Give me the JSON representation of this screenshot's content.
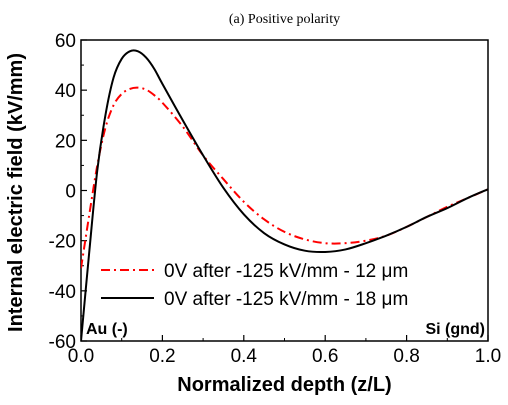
{
  "chart_data": {
    "type": "line",
    "title": "(a) Positive polarity",
    "xlabel": "Normalized depth (z/L)",
    "ylabel": "Internal electric field (kV/mm)",
    "xlim": [
      0.0,
      1.0
    ],
    "ylim": [
      -60,
      60
    ],
    "xticks": [
      "0.0",
      "0.2",
      "0.4",
      "0.6",
      "0.8",
      "1.0"
    ],
    "yticks": [
      "-60",
      "-40",
      "-20",
      "0",
      "20",
      "40",
      "60"
    ],
    "grid": false,
    "legend_position": "bottom-left",
    "annotations": {
      "left": "Au (-)",
      "right": "Si (gnd)"
    },
    "series": [
      {
        "name": "0V after -125 kV/mm -  12 μm",
        "color": "#ff0000",
        "style": "dash-dot",
        "x": [
          0.0,
          0.02,
          0.04,
          0.06,
          0.08,
          0.1,
          0.12,
          0.14,
          0.16,
          0.18,
          0.2,
          0.25,
          0.3,
          0.35,
          0.4,
          0.45,
          0.5,
          0.55,
          0.6,
          0.65,
          0.7,
          0.75,
          0.8,
          0.85,
          0.9,
          0.95,
          1.0
        ],
        "y": [
          -31,
          -10,
          10,
          25,
          34,
          38.5,
          40.5,
          41,
          40.2,
          38,
          35,
          25.5,
          14,
          4.5,
          -4.5,
          -11.5,
          -16.5,
          -19.5,
          -21,
          -21,
          -20,
          -18,
          -14.5,
          -10.5,
          -6.5,
          -3,
          0.5
        ]
      },
      {
        "name": "0V after -125 kV/mm -  18 μm",
        "color": "#000000",
        "style": "solid",
        "x": [
          0.0,
          0.02,
          0.04,
          0.06,
          0.08,
          0.1,
          0.12,
          0.14,
          0.16,
          0.18,
          0.2,
          0.25,
          0.3,
          0.35,
          0.4,
          0.45,
          0.5,
          0.55,
          0.6,
          0.65,
          0.7,
          0.75,
          0.8,
          0.85,
          0.9,
          0.95,
          1.0
        ],
        "y": [
          -60,
          -25,
          8,
          30,
          45,
          52.5,
          55.5,
          55.5,
          53,
          48.5,
          42.5,
          28,
          14,
          1,
          -9.5,
          -17,
          -21.5,
          -24,
          -24.5,
          -23.5,
          -21,
          -18,
          -14.5,
          -10.5,
          -7,
          -3,
          0.5
        ]
      }
    ]
  }
}
